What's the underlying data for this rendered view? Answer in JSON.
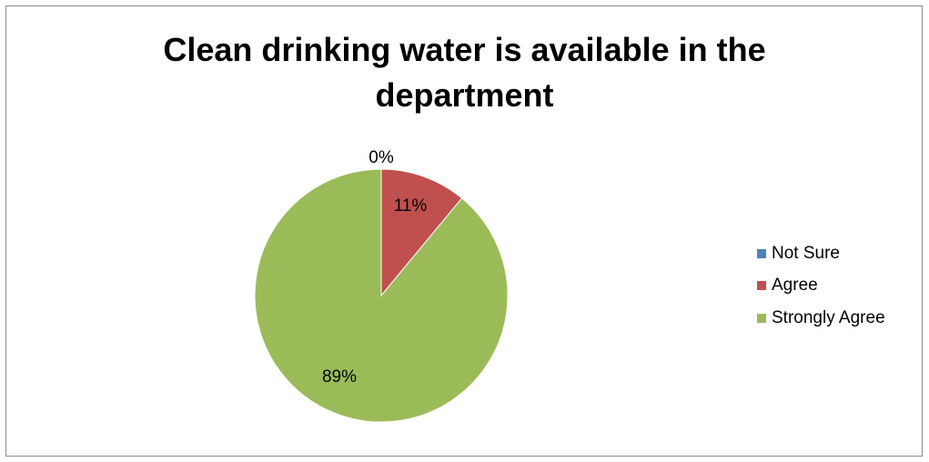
{
  "chart_data": {
    "type": "pie",
    "title": "Clean drinking water is available in the department",
    "title_lines": [
      "Clean drinking water is available in the",
      "department"
    ],
    "categories": [
      "Not Sure",
      "Agree",
      "Strongly Agree"
    ],
    "values": [
      0,
      11,
      89
    ],
    "labels": [
      "0%",
      "11%",
      "89%"
    ],
    "colors": [
      "#4F81BD",
      "#C0504D",
      "#9BBB59"
    ],
    "legend_position": "right"
  }
}
